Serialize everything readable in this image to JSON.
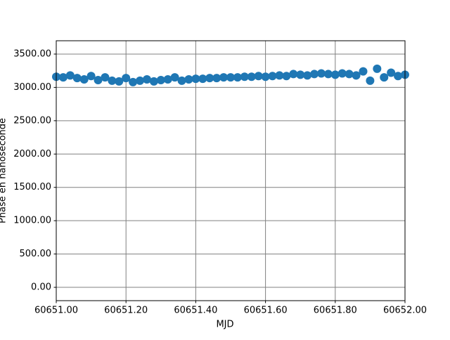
{
  "chart_data": {
    "type": "scatter",
    "xlabel": "MJD",
    "ylabel": "Phase en nanoseconde",
    "color": "#1f77b4",
    "grid": true,
    "xlim": [
      60651.0,
      60652.0
    ],
    "xticks": [
      {
        "value": 60651.0,
        "label": "60651.00"
      },
      {
        "value": 60651.2,
        "label": "60651.20"
      },
      {
        "value": 60651.4,
        "label": "60651.40"
      },
      {
        "value": 60651.6,
        "label": "60651.60"
      },
      {
        "value": 60651.8,
        "label": "60651.80"
      },
      {
        "value": 60652.0,
        "label": "60652.00"
      }
    ],
    "ylim": [
      -200,
      3700
    ],
    "yticks": [
      {
        "value": 0,
        "label": "0.00"
      },
      {
        "value": 500,
        "label": "500.00"
      },
      {
        "value": 1000,
        "label": "1000.00"
      },
      {
        "value": 1500,
        "label": "1500.00"
      },
      {
        "value": 2000,
        "label": "2000.00"
      },
      {
        "value": 2500,
        "label": "2500.00"
      },
      {
        "value": 3000,
        "label": "3000.00"
      },
      {
        "value": 3500,
        "label": "3500.00"
      }
    ],
    "x": [
      60651.0,
      60651.02,
      60651.04,
      60651.06,
      60651.08,
      60651.1,
      60651.12,
      60651.14,
      60651.16,
      60651.18,
      60651.2,
      60651.22,
      60651.24,
      60651.26,
      60651.28,
      60651.3,
      60651.32,
      60651.34,
      60651.36,
      60651.38,
      60651.4,
      60651.42,
      60651.44,
      60651.46,
      60651.48,
      60651.5,
      60651.52,
      60651.54,
      60651.56,
      60651.58,
      60651.6,
      60651.62,
      60651.64,
      60651.66,
      60651.68,
      60651.7,
      60651.72,
      60651.74,
      60651.76,
      60651.78,
      60651.8,
      60651.82,
      60651.84,
      60651.86,
      60651.88,
      60651.9,
      60651.92,
      60651.94,
      60651.96,
      60651.98,
      60652.0
    ],
    "values": [
      3160,
      3150,
      3180,
      3140,
      3120,
      3170,
      3110,
      3150,
      3100,
      3090,
      3140,
      3080,
      3100,
      3120,
      3090,
      3110,
      3120,
      3150,
      3100,
      3120,
      3130,
      3130,
      3140,
      3140,
      3150,
      3150,
      3150,
      3160,
      3160,
      3170,
      3160,
      3170,
      3180,
      3170,
      3200,
      3190,
      3180,
      3200,
      3210,
      3200,
      3190,
      3210,
      3200,
      3180,
      3240,
      3100,
      3280,
      3150,
      3220,
      3170,
      3190
    ]
  }
}
